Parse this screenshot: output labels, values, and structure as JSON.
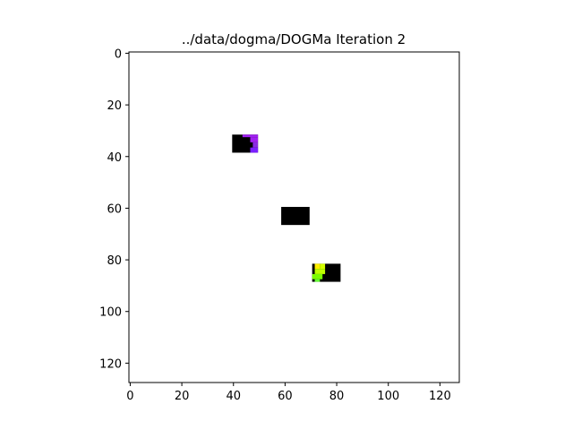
{
  "chart_data": {
    "type": "heatmap",
    "title": "../data/dogma/DOGMa Iteration 2",
    "xlabel": "",
    "ylabel": "",
    "xlim": [
      -0.5,
      127.5
    ],
    "ylim": [
      127.5,
      -0.5
    ],
    "grid": false,
    "origin": "upper",
    "x_ticks": [
      0,
      20,
      40,
      60,
      80,
      100,
      120
    ],
    "y_ticks": [
      0,
      20,
      40,
      60,
      80,
      100,
      120
    ],
    "background_color": "#ffffff",
    "cells": [
      {
        "x0": 40,
        "x1": 50,
        "y0": 32,
        "y1": 39,
        "color": "#000000"
      },
      {
        "x0": 44,
        "x1": 50,
        "y0": 32,
        "y1": 33,
        "color": "#a020f0"
      },
      {
        "x0": 47,
        "x1": 50,
        "y0": 33,
        "y1": 35,
        "color": "#a020f0"
      },
      {
        "x0": 48,
        "x1": 50,
        "y0": 35,
        "y1": 37,
        "color": "#8a2be2"
      },
      {
        "x0": 47,
        "x1": 50,
        "y0": 37,
        "y1": 39,
        "color": "#7b1fff"
      },
      {
        "x0": 59,
        "x1": 70,
        "y0": 60,
        "y1": 67,
        "color": "#000000"
      },
      {
        "x0": 71,
        "x1": 82,
        "y0": 82,
        "y1": 89,
        "color": "#000000"
      },
      {
        "x0": 72,
        "x1": 74,
        "y0": 82,
        "y1": 84,
        "color": "#ffee00"
      },
      {
        "x0": 74,
        "x1": 76,
        "y0": 82,
        "y1": 84,
        "color": "#d4ff00"
      },
      {
        "x0": 72,
        "x1": 76,
        "y0": 84,
        "y1": 86,
        "color": "#bfff00"
      },
      {
        "x0": 71,
        "x1": 75,
        "y0": 86,
        "y1": 88,
        "color": "#7cfc00"
      },
      {
        "x0": 72,
        "x1": 74,
        "y0": 88,
        "y1": 89,
        "color": "#66ff33"
      }
    ]
  }
}
